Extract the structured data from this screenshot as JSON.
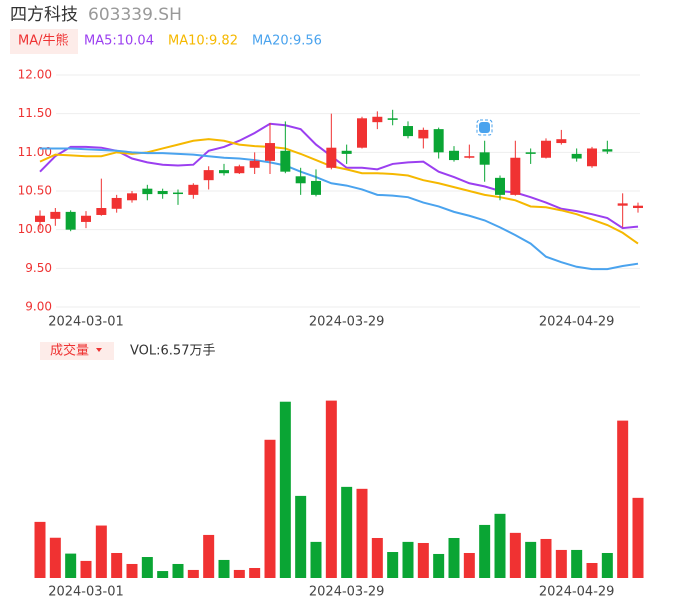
{
  "chart_data": {
    "type": "candlestick",
    "title": "四方科技",
    "subtitle": "603339.SH",
    "indicator": "MA/牛熊",
    "categories": [
      null,
      null,
      null,
      "2024-03-01",
      null,
      null,
      null,
      null,
      null,
      null,
      null,
      null,
      null,
      null,
      null,
      null,
      null,
      null,
      null,
      null,
      "2024-03-29",
      null,
      null,
      null,
      null,
      null,
      null,
      null,
      null,
      null,
      null,
      null,
      null,
      null,
      null,
      "2024-04-29",
      null,
      null,
      null,
      null
    ],
    "open": [
      10.1,
      10.14,
      10.23,
      10.1,
      10.19,
      10.27,
      10.38,
      10.53,
      10.5,
      10.48,
      10.45,
      10.64,
      10.77,
      10.73,
      10.8,
      10.89,
      11.02,
      10.69,
      10.63,
      10.8,
      11.02,
      11.06,
      11.39,
      11.44,
      11.34,
      11.18,
      11.3,
      11.02,
      10.93,
      11.0,
      10.67,
      10.45,
      11.0,
      10.93,
      11.12,
      10.98,
      10.82,
      11.04,
      10.31,
      10.28
    ],
    "high": [
      10.25,
      10.28,
      10.25,
      10.24,
      10.66,
      10.45,
      10.5,
      10.58,
      10.53,
      10.52,
      10.6,
      10.82,
      10.85,
      10.84,
      11.0,
      11.38,
      11.4,
      10.8,
      10.78,
      11.5,
      11.1,
      11.46,
      11.53,
      11.55,
      11.4,
      11.32,
      11.32,
      11.08,
      11.1,
      11.15,
      10.7,
      11.15,
      11.05,
      11.18,
      11.29,
      11.05,
      11.07,
      11.15,
      10.47,
      10.35
    ],
    "low": [
      10.0,
      10.05,
      9.98,
      10.02,
      10.18,
      10.22,
      10.35,
      10.38,
      10.4,
      10.32,
      10.4,
      10.52,
      10.7,
      10.72,
      10.72,
      10.72,
      10.73,
      10.45,
      10.43,
      10.78,
      10.85,
      11.05,
      11.3,
      11.35,
      11.18,
      11.05,
      10.92,
      10.88,
      10.92,
      10.62,
      10.38,
      10.44,
      10.85,
      10.92,
      11.1,
      10.88,
      10.8,
      10.98,
      10.03,
      10.22
    ],
    "close": [
      10.18,
      10.23,
      10.0,
      10.18,
      10.28,
      10.41,
      10.47,
      10.46,
      10.46,
      10.47,
      10.58,
      10.77,
      10.73,
      10.82,
      10.89,
      11.12,
      10.75,
      10.6,
      10.45,
      11.06,
      10.98,
      11.44,
      11.46,
      11.42,
      11.21,
      11.29,
      11.0,
      10.9,
      10.95,
      10.84,
      10.45,
      10.93,
      10.98,
      11.15,
      11.17,
      10.92,
      11.05,
      11.01,
      10.34,
      10.31
    ],
    "up_color": "#f03232",
    "down_color": "#0aa534",
    "series": [
      {
        "name": "MA5:10.04",
        "color": "#9b3ff0",
        "values": [
          10.75,
          10.95,
          11.07,
          11.07,
          11.06,
          11.02,
          10.92,
          10.87,
          10.84,
          10.83,
          10.84,
          11.02,
          11.07,
          11.15,
          11.25,
          11.37,
          11.35,
          11.3,
          11.1,
          10.95,
          10.8,
          10.8,
          10.78,
          10.85,
          10.87,
          10.88,
          10.75,
          10.68,
          10.6,
          10.56,
          10.5,
          10.48,
          10.42,
          10.35,
          10.27,
          10.24,
          10.2,
          10.15,
          10.02,
          10.04
        ]
      },
      {
        "name": "MA10:9.82",
        "color": "#f5b800",
        "values": [
          10.88,
          10.97,
          10.96,
          10.95,
          10.95,
          11.0,
          10.98,
          11.0,
          11.05,
          11.1,
          11.15,
          11.17,
          11.15,
          11.1,
          11.08,
          11.07,
          11.05,
          10.98,
          10.9,
          10.82,
          10.78,
          10.73,
          10.73,
          10.72,
          10.7,
          10.64,
          10.6,
          10.55,
          10.5,
          10.45,
          10.42,
          10.38,
          10.3,
          10.29,
          10.25,
          10.2,
          10.13,
          10.06,
          9.96,
          9.82
        ]
      },
      {
        "name": "MA20:9.56",
        "color": "#4aa3ee",
        "values": [
          11.05,
          11.05,
          11.05,
          11.04,
          11.03,
          11.02,
          11.0,
          10.99,
          10.99,
          10.98,
          10.97,
          10.95,
          10.93,
          10.92,
          10.9,
          10.87,
          10.83,
          10.75,
          10.68,
          10.6,
          10.57,
          10.52,
          10.45,
          10.44,
          10.42,
          10.35,
          10.3,
          10.23,
          10.18,
          10.12,
          10.03,
          9.93,
          9.82,
          9.65,
          9.58,
          9.52,
          9.49,
          9.49,
          9.53,
          9.56
        ]
      }
    ],
    "ylim": [
      9.0,
      12.0
    ],
    "yticks": [
      {
        "value": 12.0,
        "label": "12.00"
      },
      {
        "value": 11.5,
        "label": "11.50"
      },
      {
        "value": 11.0,
        "label": "11.00"
      },
      {
        "value": 10.5,
        "label": "10.50"
      },
      {
        "value": 10.0,
        "label": "10.00"
      },
      {
        "value": 9.5,
        "label": "9.50"
      },
      {
        "value": 9.0,
        "label": "9.00"
      }
    ],
    "grid": true,
    "volume": {
      "name": "成交量",
      "label": "VOL:6.57万手",
      "ylim": [
        0,
        15
      ],
      "values": [
        4.6,
        3.3,
        2.0,
        1.4,
        4.3,
        2.05,
        1.15,
        1.72,
        0.57,
        1.15,
        0.66,
        3.53,
        1.48,
        0.66,
        0.82,
        11.33,
        14.45,
        6.73,
        2.96,
        14.54,
        7.47,
        7.31,
        3.28,
        2.13,
        2.96,
        2.87,
        1.97,
        3.28,
        2.05,
        4.35,
        5.26,
        3.7,
        2.96,
        3.2,
        2.3,
        2.3,
        1.23,
        2.05,
        12.9,
        6.57
      ]
    }
  }
}
